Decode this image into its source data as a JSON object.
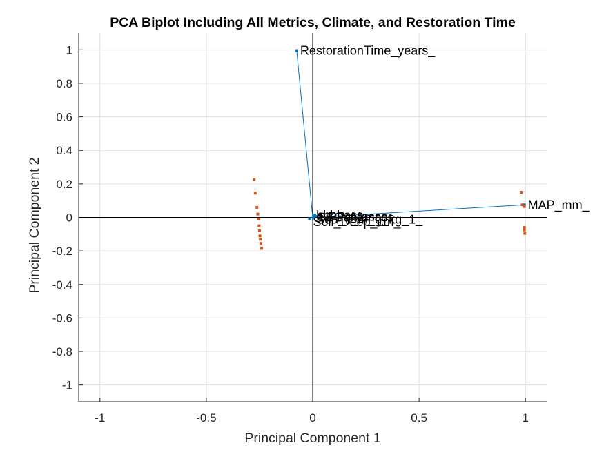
{
  "chart_data": {
    "type": "scatter",
    "title": "PCA Biplot Including All Metrics, Climate, and Restoration Time",
    "xlabel": "Principal Component 1",
    "ylabel": "Principal Component 2",
    "xlim": [
      -1.1,
      1.1
    ],
    "ylim": [
      -1.1,
      1.1
    ],
    "xticks": [
      -1,
      -0.5,
      0,
      0.5,
      1
    ],
    "yticks": [
      -1,
      -0.8,
      -0.6,
      -0.4,
      -0.2,
      0,
      0.2,
      0.4,
      0.6,
      0.8,
      1
    ],
    "xtick_labels": [
      "-1",
      "-0.5",
      "0",
      "0.5",
      "1"
    ],
    "ytick_labels": [
      "-1",
      "-0.8",
      "-0.6",
      "-0.4",
      "-0.2",
      "0",
      "0.2",
      "0.4",
      "0.6",
      "0.8",
      "1"
    ],
    "grid": true,
    "vector_color": "#0072BD",
    "score_color": "#D95319",
    "vectors": [
      {
        "label": "RestorationTime_years_",
        "x": -0.075,
        "y": 0.995
      },
      {
        "label": "MAP_mm_",
        "x": 0.995,
        "y": 0.075
      },
      {
        "label": "",
        "x": 0.018,
        "y": 0.005
      },
      {
        "label": "",
        "x": 0.01,
        "y": 0.012
      },
      {
        "label": "",
        "x": 0.006,
        "y": 0.003
      },
      {
        "label": "",
        "x": -0.015,
        "y": -0.008
      },
      {
        "label": "",
        "x": 0.003,
        "y": -0.004
      }
    ],
    "vector_label_cluster": [
      {
        "text": "hbbbass",
        "x": 0.01,
        "y": 0.012
      },
      {
        "text": "cllPPcMasse",
        "x": 0.012,
        "y": 0.004
      },
      {
        "text": "SSGunamass",
        "x": 0.015,
        "y": 0.0
      },
      {
        "text": "Sea_ll_m_g_kg_1_",
        "x": 0.01,
        "y": -0.012
      },
      {
        "text": "Soil_Deep_cm_",
        "x": -0.005,
        "y": -0.026
      }
    ],
    "scores": [
      {
        "x": -0.275,
        "y": 0.225
      },
      {
        "x": -0.27,
        "y": 0.145
      },
      {
        "x": -0.262,
        "y": 0.06
      },
      {
        "x": -0.258,
        "y": 0.02
      },
      {
        "x": -0.255,
        "y": -0.01
      },
      {
        "x": -0.252,
        "y": -0.05
      },
      {
        "x": -0.25,
        "y": -0.08
      },
      {
        "x": -0.248,
        "y": -0.11
      },
      {
        "x": -0.246,
        "y": -0.13
      },
      {
        "x": -0.244,
        "y": -0.155
      },
      {
        "x": -0.24,
        "y": -0.185
      },
      {
        "x": 0.98,
        "y": 0.15
      },
      {
        "x": 0.985,
        "y": 0.075
      },
      {
        "x": 0.995,
        "y": 0.065
      },
      {
        "x": 0.995,
        "y": -0.06
      },
      {
        "x": 0.995,
        "y": -0.075
      },
      {
        "x": 0.997,
        "y": -0.095
      }
    ]
  }
}
